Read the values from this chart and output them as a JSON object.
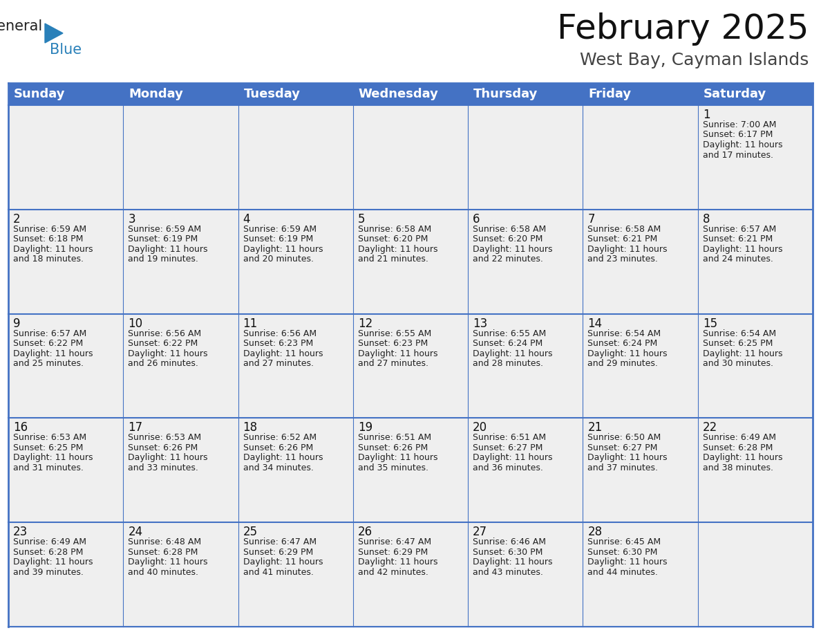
{
  "title": "February 2025",
  "subtitle": "West Bay, Cayman Islands",
  "header_color": "#4472C4",
  "header_text_color": "#FFFFFF",
  "bg_color": "#FFFFFF",
  "cell_bg_color": "#EFEFEF",
  "border_color": "#4472C4",
  "days_of_week": [
    "Sunday",
    "Monday",
    "Tuesday",
    "Wednesday",
    "Thursday",
    "Friday",
    "Saturday"
  ],
  "title_fontsize": 36,
  "subtitle_fontsize": 18,
  "header_fontsize": 13,
  "day_num_fontsize": 12,
  "cell_text_fontsize": 9,
  "logo_color_general": "#222222",
  "logo_color_blue": "#2980B9",
  "logo_triangle_color": "#2980B9",
  "calendar": [
    [
      {
        "day": null,
        "text": ""
      },
      {
        "day": null,
        "text": ""
      },
      {
        "day": null,
        "text": ""
      },
      {
        "day": null,
        "text": ""
      },
      {
        "day": null,
        "text": ""
      },
      {
        "day": null,
        "text": ""
      },
      {
        "day": 1,
        "text": "Sunrise: 7:00 AM\nSunset: 6:17 PM\nDaylight: 11 hours\nand 17 minutes."
      }
    ],
    [
      {
        "day": 2,
        "text": "Sunrise: 6:59 AM\nSunset: 6:18 PM\nDaylight: 11 hours\nand 18 minutes."
      },
      {
        "day": 3,
        "text": "Sunrise: 6:59 AM\nSunset: 6:19 PM\nDaylight: 11 hours\nand 19 minutes."
      },
      {
        "day": 4,
        "text": "Sunrise: 6:59 AM\nSunset: 6:19 PM\nDaylight: 11 hours\nand 20 minutes."
      },
      {
        "day": 5,
        "text": "Sunrise: 6:58 AM\nSunset: 6:20 PM\nDaylight: 11 hours\nand 21 minutes."
      },
      {
        "day": 6,
        "text": "Sunrise: 6:58 AM\nSunset: 6:20 PM\nDaylight: 11 hours\nand 22 minutes."
      },
      {
        "day": 7,
        "text": "Sunrise: 6:58 AM\nSunset: 6:21 PM\nDaylight: 11 hours\nand 23 minutes."
      },
      {
        "day": 8,
        "text": "Sunrise: 6:57 AM\nSunset: 6:21 PM\nDaylight: 11 hours\nand 24 minutes."
      }
    ],
    [
      {
        "day": 9,
        "text": "Sunrise: 6:57 AM\nSunset: 6:22 PM\nDaylight: 11 hours\nand 25 minutes."
      },
      {
        "day": 10,
        "text": "Sunrise: 6:56 AM\nSunset: 6:22 PM\nDaylight: 11 hours\nand 26 minutes."
      },
      {
        "day": 11,
        "text": "Sunrise: 6:56 AM\nSunset: 6:23 PM\nDaylight: 11 hours\nand 27 minutes."
      },
      {
        "day": 12,
        "text": "Sunrise: 6:55 AM\nSunset: 6:23 PM\nDaylight: 11 hours\nand 27 minutes."
      },
      {
        "day": 13,
        "text": "Sunrise: 6:55 AM\nSunset: 6:24 PM\nDaylight: 11 hours\nand 28 minutes."
      },
      {
        "day": 14,
        "text": "Sunrise: 6:54 AM\nSunset: 6:24 PM\nDaylight: 11 hours\nand 29 minutes."
      },
      {
        "day": 15,
        "text": "Sunrise: 6:54 AM\nSunset: 6:25 PM\nDaylight: 11 hours\nand 30 minutes."
      }
    ],
    [
      {
        "day": 16,
        "text": "Sunrise: 6:53 AM\nSunset: 6:25 PM\nDaylight: 11 hours\nand 31 minutes."
      },
      {
        "day": 17,
        "text": "Sunrise: 6:53 AM\nSunset: 6:26 PM\nDaylight: 11 hours\nand 33 minutes."
      },
      {
        "day": 18,
        "text": "Sunrise: 6:52 AM\nSunset: 6:26 PM\nDaylight: 11 hours\nand 34 minutes."
      },
      {
        "day": 19,
        "text": "Sunrise: 6:51 AM\nSunset: 6:26 PM\nDaylight: 11 hours\nand 35 minutes."
      },
      {
        "day": 20,
        "text": "Sunrise: 6:51 AM\nSunset: 6:27 PM\nDaylight: 11 hours\nand 36 minutes."
      },
      {
        "day": 21,
        "text": "Sunrise: 6:50 AM\nSunset: 6:27 PM\nDaylight: 11 hours\nand 37 minutes."
      },
      {
        "day": 22,
        "text": "Sunrise: 6:49 AM\nSunset: 6:28 PM\nDaylight: 11 hours\nand 38 minutes."
      }
    ],
    [
      {
        "day": 23,
        "text": "Sunrise: 6:49 AM\nSunset: 6:28 PM\nDaylight: 11 hours\nand 39 minutes."
      },
      {
        "day": 24,
        "text": "Sunrise: 6:48 AM\nSunset: 6:28 PM\nDaylight: 11 hours\nand 40 minutes."
      },
      {
        "day": 25,
        "text": "Sunrise: 6:47 AM\nSunset: 6:29 PM\nDaylight: 11 hours\nand 41 minutes."
      },
      {
        "day": 26,
        "text": "Sunrise: 6:47 AM\nSunset: 6:29 PM\nDaylight: 11 hours\nand 42 minutes."
      },
      {
        "day": 27,
        "text": "Sunrise: 6:46 AM\nSunset: 6:30 PM\nDaylight: 11 hours\nand 43 minutes."
      },
      {
        "day": 28,
        "text": "Sunrise: 6:45 AM\nSunset: 6:30 PM\nDaylight: 11 hours\nand 44 minutes."
      },
      {
        "day": null,
        "text": ""
      }
    ]
  ]
}
